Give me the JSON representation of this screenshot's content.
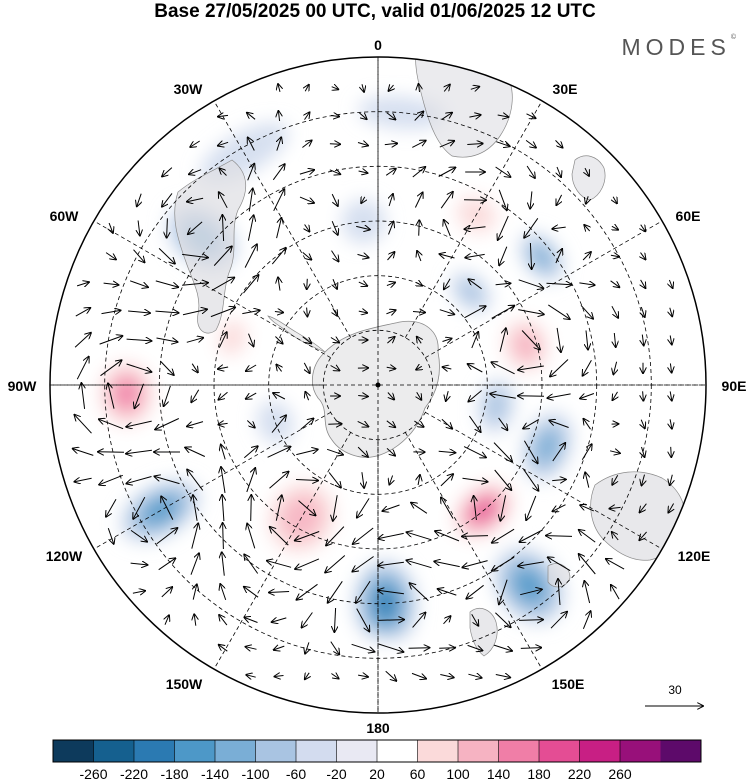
{
  "title": "Base 27/05/2025 00 UTC, valid 01/06/2025 12 UTC",
  "brand": "MODES",
  "brand_mark": "©",
  "longitude_labels": {
    "top": "0",
    "bottom": "180",
    "left": "90W",
    "right": "90E",
    "w30": "30W",
    "e30": "30E",
    "w60": "60W",
    "e60": "60E",
    "w120": "120W",
    "e120": "120E",
    "w150": "150W",
    "e150": "150E"
  },
  "reference_vector": "30",
  "colorbar": {
    "ticks": [
      "-260",
      "-220",
      "-180",
      "-140",
      "-100",
      "-60",
      "-20",
      "20",
      "60",
      "100",
      "140",
      "180",
      "220",
      "260"
    ],
    "colors": [
      "#0d3a5c",
      "#15608f",
      "#2b7ab2",
      "#4d98c8",
      "#7aaed6",
      "#a9c4e2",
      "#d3dcef",
      "#e9e9f3",
      "#ffffff",
      "#fbdada",
      "#f6b3c2",
      "#f07ea7",
      "#e44d94",
      "#c81f84",
      "#98107a",
      "#5d0a6a"
    ]
  },
  "anomalies": [
    {
      "lon": 30,
      "colat": 36,
      "rx": 34,
      "ry": 28,
      "value": 110
    },
    {
      "lon": 52,
      "colat": 38,
      "rx": 28,
      "ry": 18,
      "value": -120
    },
    {
      "lon": 45,
      "colat": 24,
      "rx": 24,
      "ry": 16,
      "value": -90
    },
    {
      "lon": 75,
      "colat": 28,
      "rx": 36,
      "ry": 30,
      "value": 150
    },
    {
      "lon": 100,
      "colat": 22,
      "rx": 28,
      "ry": 18,
      "value": -80
    },
    {
      "lon": 110,
      "colat": 33,
      "rx": 36,
      "ry": 24,
      "value": -120
    },
    {
      "lon": 112,
      "colat": 43,
      "rx": 40,
      "ry": 26,
      "value": 60
    },
    {
      "lon": 140,
      "colat": 30,
      "rx": 40,
      "ry": 28,
      "value": 200
    },
    {
      "lon": 143,
      "colat": 46,
      "rx": 32,
      "ry": 42,
      "value": -190
    },
    {
      "lon": 178,
      "colat": 40,
      "rx": 32,
      "ry": 44,
      "value": -200
    },
    {
      "lon": 180,
      "colat": 50,
      "rx": 50,
      "ry": 20,
      "value": 60
    },
    {
      "lon": -150,
      "colat": 28,
      "rx": 44,
      "ry": 50,
      "value": 150
    },
    {
      "lon": -120,
      "colat": 46,
      "rx": 26,
      "ry": 44,
      "value": -160
    },
    {
      "lon": -110,
      "colat": 20,
      "rx": 22,
      "ry": 18,
      "value": -70
    },
    {
      "lon": -92,
      "colat": 46,
      "rx": 40,
      "ry": 34,
      "value": 170
    },
    {
      "lon": -72,
      "colat": 28,
      "rx": 30,
      "ry": 22,
      "value": 80
    },
    {
      "lon": -50,
      "colat": 42,
      "rx": 28,
      "ry": 40,
      "value": -130
    },
    {
      "lon": -40,
      "colat": 27,
      "rx": 34,
      "ry": 22,
      "value": 60
    },
    {
      "lon": -25,
      "colat": 36,
      "rx": 30,
      "ry": 24,
      "value": 60
    },
    {
      "lon": -30,
      "colat": 49,
      "rx": 50,
      "ry": 20,
      "value": -40
    },
    {
      "lon": -5,
      "colat": 30,
      "rx": 22,
      "ry": 22,
      "value": -40
    },
    {
      "lon": 5,
      "colat": 50,
      "rx": 44,
      "ry": 16,
      "value": -30
    },
    {
      "lon": -80,
      "colat": 15,
      "rx": 20,
      "ry": 14,
      "value": 40
    },
    {
      "lon": 40,
      "colat": 12,
      "rx": 18,
      "ry": 14,
      "value": 30
    },
    {
      "lon": 125,
      "colat": 53,
      "rx": 20,
      "ry": 16,
      "value": 50
    }
  ]
}
